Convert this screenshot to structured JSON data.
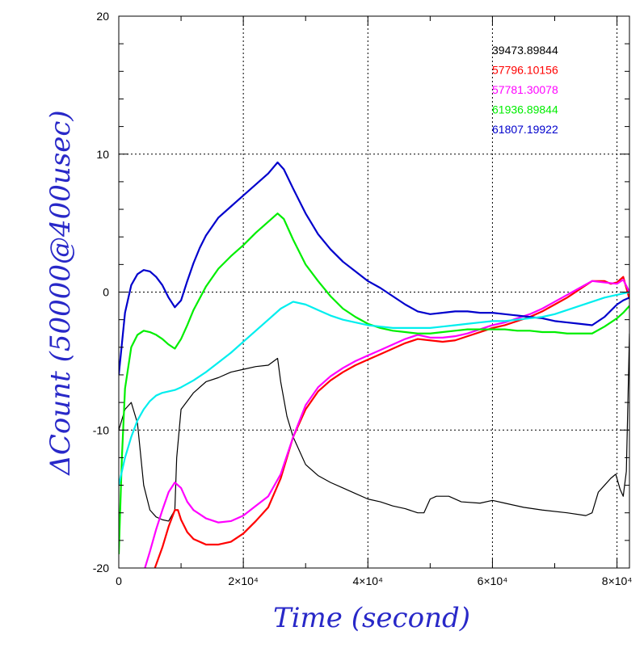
{
  "chart_data": {
    "type": "line",
    "title": "",
    "xlabel": "Time (second)",
    "ylabel": "ΔCount (50000@400usec)",
    "axis_label_color": "#2828c8",
    "xlim": [
      0,
      82000
    ],
    "ylim": [
      -20,
      20
    ],
    "grid": true,
    "legend_position": "top-right",
    "x_ticks": [
      {
        "value": 0,
        "label": "0"
      },
      {
        "value": 20000,
        "label": "2×10⁴"
      },
      {
        "value": 40000,
        "label": "4×10⁴"
      },
      {
        "value": 60000,
        "label": "6×10⁴"
      },
      {
        "value": 80000,
        "label": "8×10⁴"
      }
    ],
    "y_ticks": [
      {
        "value": -20,
        "label": "-20"
      },
      {
        "value": -10,
        "label": "-10"
      },
      {
        "value": 0,
        "label": "0"
      },
      {
        "value": 10,
        "label": "10"
      },
      {
        "value": 20,
        "label": "20"
      }
    ],
    "series": [
      {
        "name": "39473.89844",
        "color": "#000000",
        "points": [
          [
            0,
            -10
          ],
          [
            1000,
            -8.5
          ],
          [
            2000,
            -8
          ],
          [
            3000,
            -9.5
          ],
          [
            4000,
            -14
          ],
          [
            5000,
            -15.8
          ],
          [
            6000,
            -16.3
          ],
          [
            7000,
            -16.5
          ],
          [
            8000,
            -16.6
          ],
          [
            9000,
            -15.8
          ],
          [
            9300,
            -12
          ],
          [
            10000,
            -8.5
          ],
          [
            12000,
            -7.3
          ],
          [
            14000,
            -6.5
          ],
          [
            16000,
            -6.2
          ],
          [
            18000,
            -5.8
          ],
          [
            20000,
            -5.6
          ],
          [
            22000,
            -5.4
          ],
          [
            24000,
            -5.3
          ],
          [
            25500,
            -4.8
          ],
          [
            26000,
            -6.5
          ],
          [
            27000,
            -9
          ],
          [
            28000,
            -10.5
          ],
          [
            29000,
            -11.5
          ],
          [
            30000,
            -12.5
          ],
          [
            32000,
            -13.3
          ],
          [
            34000,
            -13.8
          ],
          [
            36000,
            -14.2
          ],
          [
            38000,
            -14.6
          ],
          [
            40000,
            -15
          ],
          [
            42000,
            -15.2
          ],
          [
            44000,
            -15.5
          ],
          [
            46000,
            -15.7
          ],
          [
            48000,
            -16
          ],
          [
            49000,
            -16
          ],
          [
            50000,
            -15
          ],
          [
            51000,
            -14.8
          ],
          [
            53000,
            -14.8
          ],
          [
            55000,
            -15.2
          ],
          [
            58000,
            -15.3
          ],
          [
            60000,
            -15.1
          ],
          [
            62000,
            -15.3
          ],
          [
            65000,
            -15.6
          ],
          [
            68000,
            -15.8
          ],
          [
            72000,
            -16
          ],
          [
            75000,
            -16.2
          ],
          [
            76000,
            -16
          ],
          [
            77000,
            -14.5
          ],
          [
            78000,
            -14
          ],
          [
            79000,
            -13.5
          ],
          [
            79800,
            -13.2
          ],
          [
            80500,
            -14.3
          ],
          [
            81000,
            -14.8
          ],
          [
            81500,
            -13
          ],
          [
            82000,
            -3
          ]
        ]
      },
      {
        "name": "57796.10156",
        "color": "#ff0000",
        "points": [
          [
            5800,
            -20
          ],
          [
            7000,
            -18.5
          ],
          [
            8000,
            -17
          ],
          [
            9000,
            -15.8
          ],
          [
            9500,
            -15.8
          ],
          [
            10000,
            -16.5
          ],
          [
            11000,
            -17.4
          ],
          [
            12000,
            -17.9
          ],
          [
            14000,
            -18.3
          ],
          [
            16000,
            -18.3
          ],
          [
            18000,
            -18.1
          ],
          [
            20000,
            -17.5
          ],
          [
            22000,
            -16.6
          ],
          [
            24000,
            -15.6
          ],
          [
            26000,
            -13.5
          ],
          [
            28000,
            -10.5
          ],
          [
            30000,
            -8.5
          ],
          [
            32000,
            -7.2
          ],
          [
            34000,
            -6.4
          ],
          [
            36000,
            -5.8
          ],
          [
            38000,
            -5.3
          ],
          [
            40000,
            -4.9
          ],
          [
            42000,
            -4.5
          ],
          [
            44000,
            -4.1
          ],
          [
            46000,
            -3.7
          ],
          [
            48000,
            -3.4
          ],
          [
            50000,
            -3.5
          ],
          [
            52000,
            -3.6
          ],
          [
            54000,
            -3.5
          ],
          [
            56000,
            -3.2
          ],
          [
            58000,
            -2.9
          ],
          [
            60000,
            -2.6
          ],
          [
            62000,
            -2.4
          ],
          [
            64000,
            -2.1
          ],
          [
            66000,
            -1.8
          ],
          [
            68000,
            -1.4
          ],
          [
            70000,
            -0.9
          ],
          [
            72000,
            -0.4
          ],
          [
            74000,
            0.2
          ],
          [
            76000,
            0.8
          ],
          [
            78000,
            0.8
          ],
          [
            79000,
            0.6
          ],
          [
            80000,
            0.7
          ],
          [
            81000,
            1.1
          ],
          [
            81500,
            0.3
          ],
          [
            82000,
            -0.5
          ]
        ]
      },
      {
        "name": "57781.30078",
        "color": "#ff00ff",
        "points": [
          [
            4200,
            -20
          ],
          [
            5000,
            -18.8
          ],
          [
            6000,
            -17.2
          ],
          [
            7000,
            -15.8
          ],
          [
            8000,
            -14.5
          ],
          [
            9000,
            -13.8
          ],
          [
            10000,
            -14.2
          ],
          [
            11000,
            -15.2
          ],
          [
            12000,
            -15.8
          ],
          [
            14000,
            -16.4
          ],
          [
            16000,
            -16.7
          ],
          [
            18000,
            -16.6
          ],
          [
            20000,
            -16.2
          ],
          [
            22000,
            -15.5
          ],
          [
            24000,
            -14.8
          ],
          [
            26000,
            -13.2
          ],
          [
            28000,
            -10.5
          ],
          [
            30000,
            -8.2
          ],
          [
            32000,
            -6.9
          ],
          [
            34000,
            -6.1
          ],
          [
            36000,
            -5.5
          ],
          [
            38000,
            -5
          ],
          [
            40000,
            -4.6
          ],
          [
            42000,
            -4.2
          ],
          [
            44000,
            -3.8
          ],
          [
            46000,
            -3.4
          ],
          [
            48000,
            -3.1
          ],
          [
            50000,
            -3.3
          ],
          [
            52000,
            -3.3
          ],
          [
            54000,
            -3.2
          ],
          [
            56000,
            -3
          ],
          [
            58000,
            -2.7
          ],
          [
            60000,
            -2.4
          ],
          [
            62000,
            -2.2
          ],
          [
            64000,
            -1.9
          ],
          [
            66000,
            -1.6
          ],
          [
            68000,
            -1.2
          ],
          [
            70000,
            -0.7
          ],
          [
            72000,
            -0.2
          ],
          [
            74000,
            0.3
          ],
          [
            76000,
            0.8
          ],
          [
            78000,
            0.7
          ],
          [
            80000,
            0.6
          ],
          [
            81000,
            0.9
          ],
          [
            82000,
            0
          ]
        ]
      },
      {
        "name": "61936.89844",
        "color": "#00ee00",
        "points": [
          [
            0,
            -19
          ],
          [
            500,
            -12
          ],
          [
            1000,
            -7
          ],
          [
            2000,
            -4
          ],
          [
            3000,
            -3.1
          ],
          [
            4000,
            -2.8
          ],
          [
            5000,
            -2.9
          ],
          [
            6000,
            -3.1
          ],
          [
            7000,
            -3.4
          ],
          [
            8000,
            -3.8
          ],
          [
            9000,
            -4.1
          ],
          [
            10000,
            -3.4
          ],
          [
            11000,
            -2.4
          ],
          [
            12000,
            -1.3
          ],
          [
            14000,
            0.4
          ],
          [
            16000,
            1.7
          ],
          [
            18000,
            2.6
          ],
          [
            20000,
            3.4
          ],
          [
            22000,
            4.3
          ],
          [
            24000,
            5.1
          ],
          [
            25500,
            5.7
          ],
          [
            26500,
            5.3
          ],
          [
            28000,
            3.8
          ],
          [
            30000,
            2
          ],
          [
            32000,
            0.8
          ],
          [
            34000,
            -0.3
          ],
          [
            36000,
            -1.2
          ],
          [
            38000,
            -1.8
          ],
          [
            40000,
            -2.3
          ],
          [
            42000,
            -2.6
          ],
          [
            44000,
            -2.8
          ],
          [
            46000,
            -2.9
          ],
          [
            48000,
            -3
          ],
          [
            50000,
            -3
          ],
          [
            52000,
            -2.9
          ],
          [
            54000,
            -2.8
          ],
          [
            56000,
            -2.7
          ],
          [
            58000,
            -2.7
          ],
          [
            60000,
            -2.7
          ],
          [
            62000,
            -2.7
          ],
          [
            64000,
            -2.8
          ],
          [
            66000,
            -2.8
          ],
          [
            68000,
            -2.9
          ],
          [
            70000,
            -2.9
          ],
          [
            72000,
            -3
          ],
          [
            74000,
            -3
          ],
          [
            76000,
            -3
          ],
          [
            78000,
            -2.5
          ],
          [
            80000,
            -1.9
          ],
          [
            81000,
            -1.5
          ],
          [
            82000,
            -1
          ]
        ]
      },
      {
        "name": "61807.19922",
        "color": "#0000cc",
        "points": [
          [
            0,
            -6
          ],
          [
            1000,
            -1.5
          ],
          [
            2000,
            0.5
          ],
          [
            3000,
            1.3
          ],
          [
            4000,
            1.6
          ],
          [
            5000,
            1.5
          ],
          [
            6000,
            1.1
          ],
          [
            7000,
            0.5
          ],
          [
            8000,
            -0.4
          ],
          [
            9000,
            -1.1
          ],
          [
            10000,
            -0.6
          ],
          [
            11000,
            0.8
          ],
          [
            12000,
            2.1
          ],
          [
            13000,
            3.2
          ],
          [
            14000,
            4.1
          ],
          [
            16000,
            5.4
          ],
          [
            18000,
            6.2
          ],
          [
            20000,
            7
          ],
          [
            22000,
            7.8
          ],
          [
            24000,
            8.6
          ],
          [
            25500,
            9.4
          ],
          [
            26500,
            8.9
          ],
          [
            28000,
            7.5
          ],
          [
            30000,
            5.7
          ],
          [
            32000,
            4.2
          ],
          [
            34000,
            3.1
          ],
          [
            36000,
            2.2
          ],
          [
            38000,
            1.5
          ],
          [
            40000,
            0.8
          ],
          [
            42000,
            0.3
          ],
          [
            44000,
            -0.3
          ],
          [
            46000,
            -0.9
          ],
          [
            48000,
            -1.4
          ],
          [
            50000,
            -1.6
          ],
          [
            52000,
            -1.5
          ],
          [
            54000,
            -1.4
          ],
          [
            56000,
            -1.4
          ],
          [
            58000,
            -1.5
          ],
          [
            60000,
            -1.5
          ],
          [
            62000,
            -1.6
          ],
          [
            64000,
            -1.7
          ],
          [
            66000,
            -1.8
          ],
          [
            68000,
            -1.9
          ],
          [
            70000,
            -2.1
          ],
          [
            72000,
            -2.2
          ],
          [
            74000,
            -2.3
          ],
          [
            76000,
            -2.4
          ],
          [
            78000,
            -1.8
          ],
          [
            80000,
            -0.9
          ],
          [
            81000,
            -0.6
          ],
          [
            82000,
            -0.4
          ]
        ]
      },
      {
        "name": "",
        "color": "#00eeee",
        "points": [
          [
            0,
            -14
          ],
          [
            1000,
            -12
          ],
          [
            2000,
            -10.5
          ],
          [
            3000,
            -9.3
          ],
          [
            4000,
            -8.5
          ],
          [
            5000,
            -7.9
          ],
          [
            6000,
            -7.5
          ],
          [
            7000,
            -7.3
          ],
          [
            8000,
            -7.2
          ],
          [
            9000,
            -7.1
          ],
          [
            10000,
            -6.9
          ],
          [
            12000,
            -6.4
          ],
          [
            14000,
            -5.8
          ],
          [
            16000,
            -5.1
          ],
          [
            18000,
            -4.4
          ],
          [
            20000,
            -3.6
          ],
          [
            22000,
            -2.8
          ],
          [
            24000,
            -2
          ],
          [
            26000,
            -1.2
          ],
          [
            28000,
            -0.7
          ],
          [
            30000,
            -0.9
          ],
          [
            32000,
            -1.3
          ],
          [
            34000,
            -1.7
          ],
          [
            36000,
            -2
          ],
          [
            38000,
            -2.2
          ],
          [
            40000,
            -2.4
          ],
          [
            42000,
            -2.5
          ],
          [
            44000,
            -2.6
          ],
          [
            46000,
            -2.6
          ],
          [
            48000,
            -2.6
          ],
          [
            50000,
            -2.6
          ],
          [
            52000,
            -2.5
          ],
          [
            54000,
            -2.4
          ],
          [
            56000,
            -2.3
          ],
          [
            58000,
            -2.2
          ],
          [
            60000,
            -2.1
          ],
          [
            62000,
            -2.1
          ],
          [
            64000,
            -2
          ],
          [
            66000,
            -1.9
          ],
          [
            68000,
            -1.8
          ],
          [
            70000,
            -1.6
          ],
          [
            72000,
            -1.3
          ],
          [
            74000,
            -1
          ],
          [
            76000,
            -0.7
          ],
          [
            78000,
            -0.4
          ],
          [
            80000,
            -0.2
          ],
          [
            81000,
            -0.1
          ],
          [
            82000,
            0
          ]
        ]
      }
    ]
  }
}
